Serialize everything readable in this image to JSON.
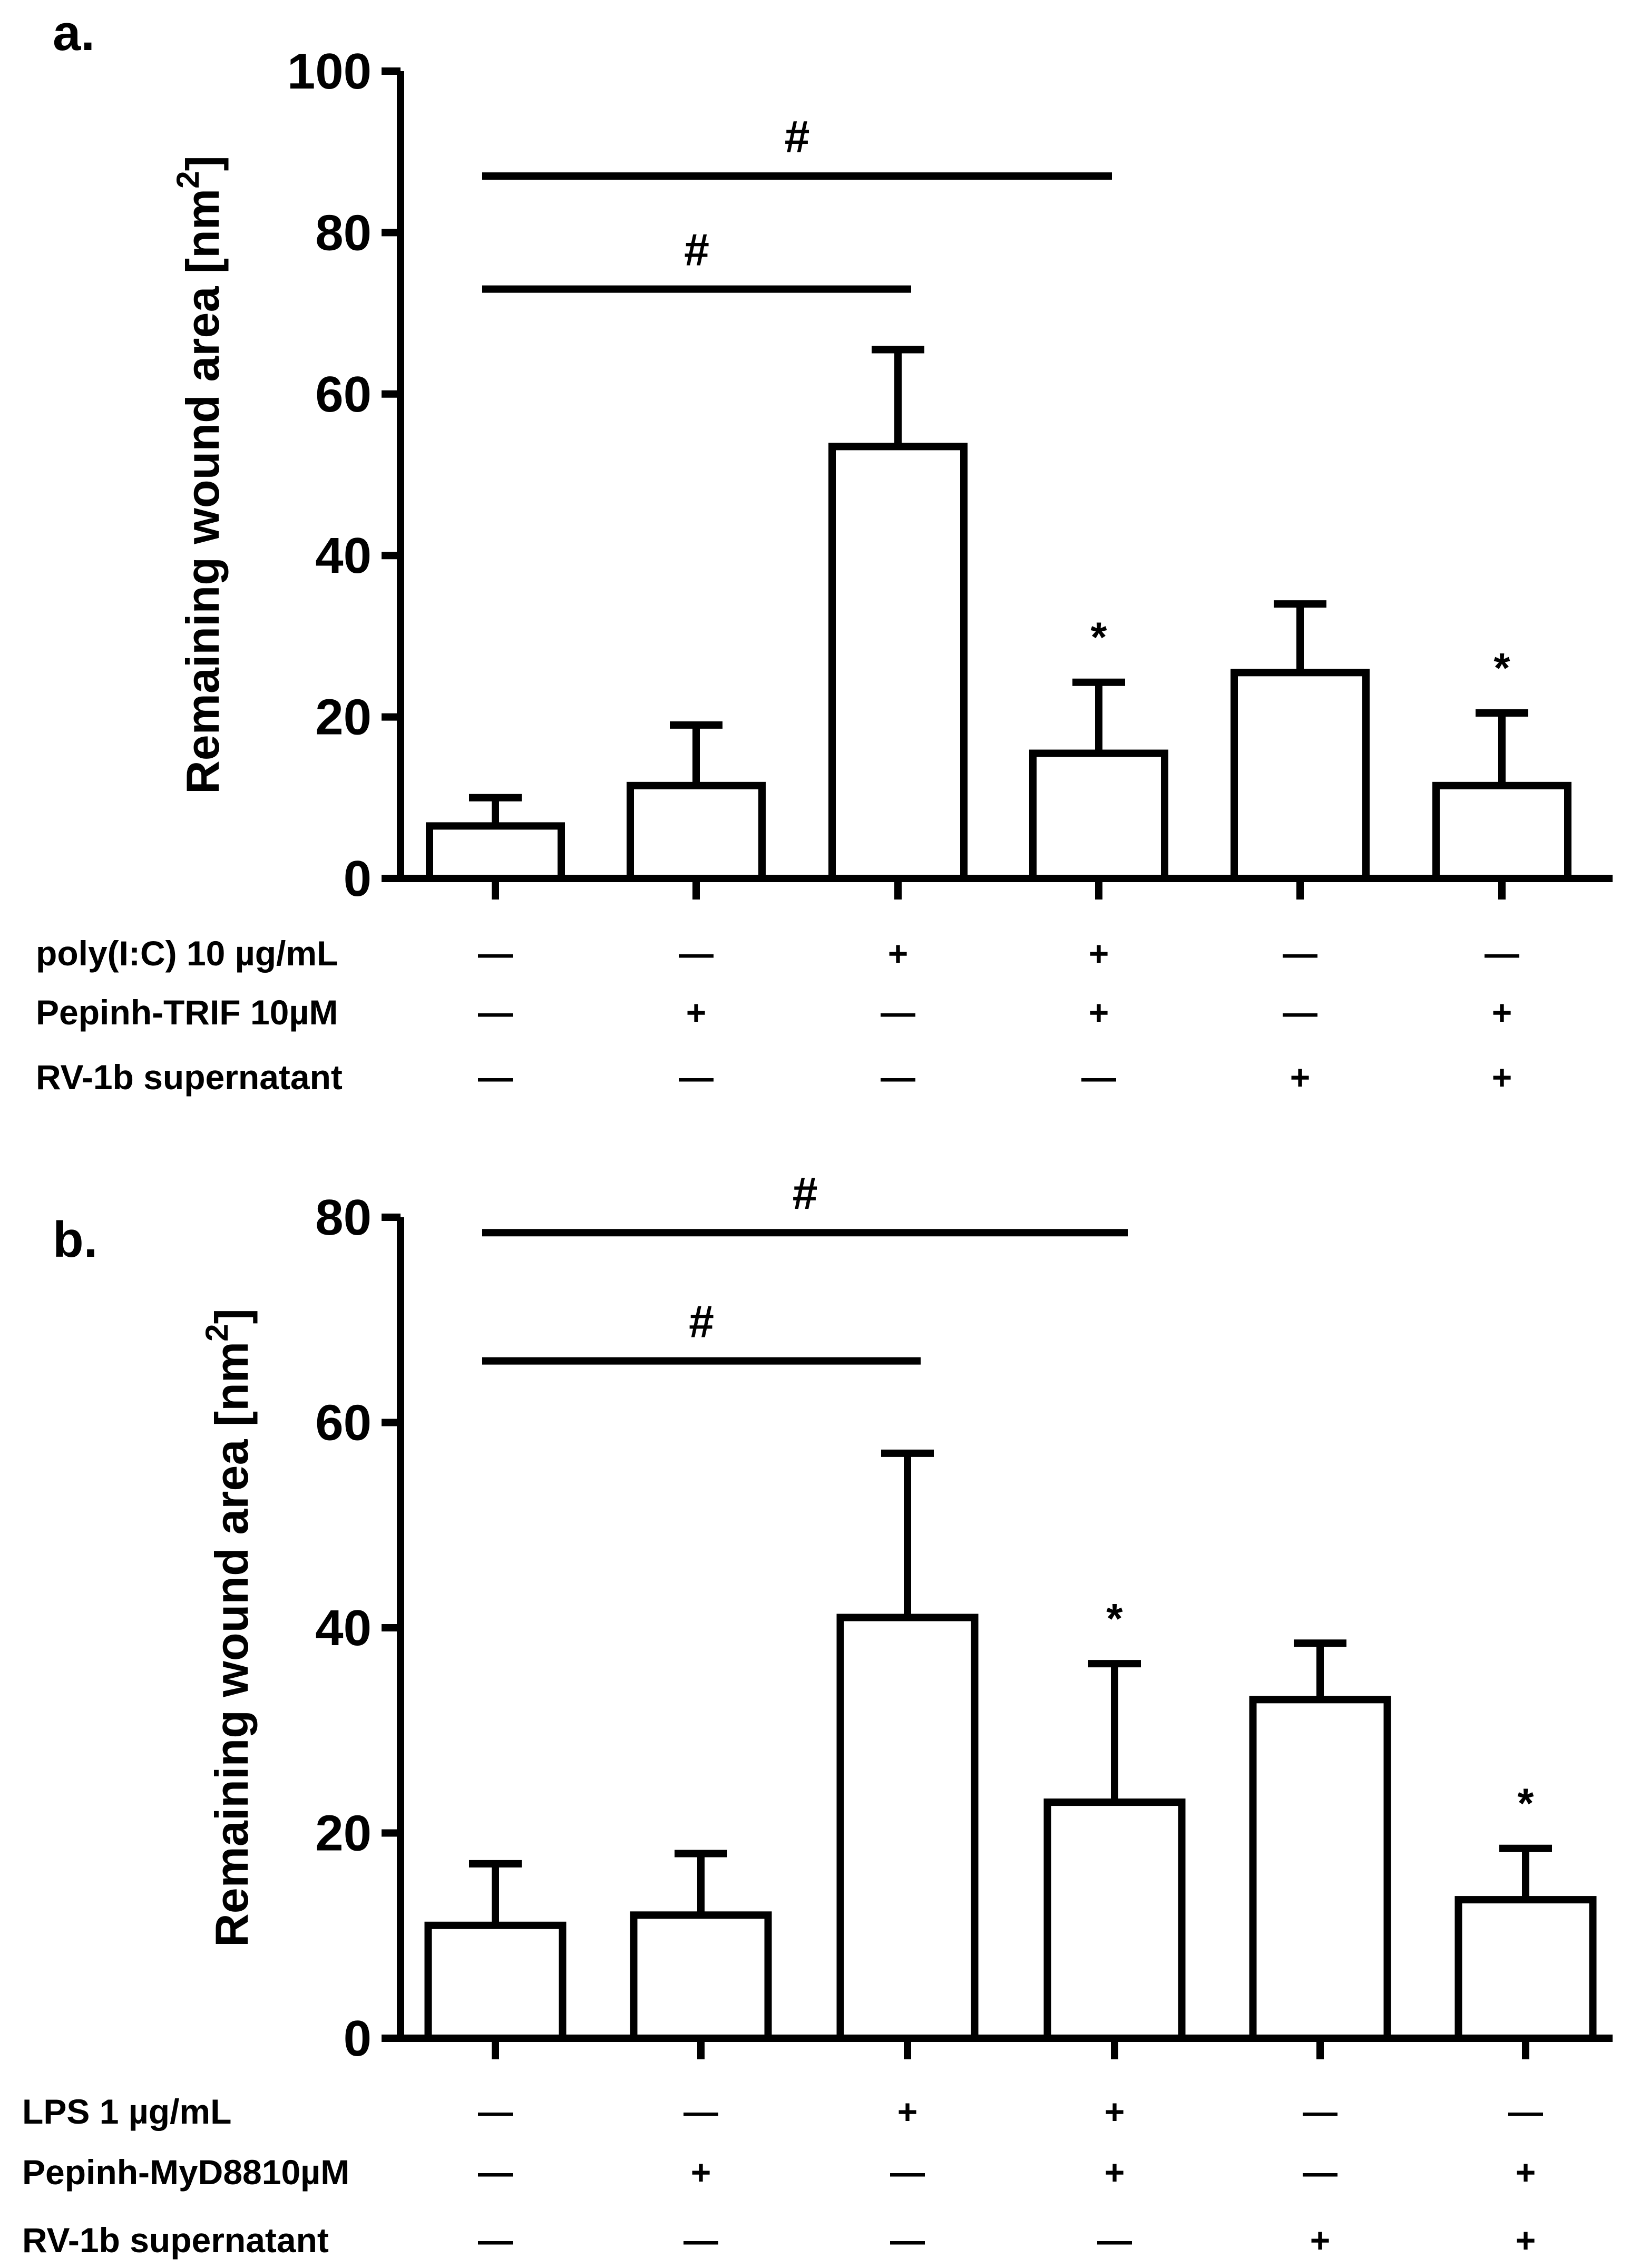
{
  "chart_data": [
    {
      "type": "bar",
      "panel_label": "a.",
      "ylabel": "Remaining wound area [nm",
      "ylabel_sup": "2",
      "ylabel_end": "]",
      "ylim": [
        0,
        100
      ],
      "yticks": [
        "0",
        "20",
        "40",
        "60",
        "80",
        "100"
      ],
      "values": [
        6.5,
        11.5,
        53.5,
        15.5,
        25.5,
        11.5
      ],
      "errors": [
        3.5,
        7.5,
        12,
        8.8,
        8.5,
        9
      ],
      "annotations": [
        "",
        "",
        "",
        "*",
        "",
        "*"
      ],
      "brackets": [
        {
          "from": 0,
          "to": 3,
          "label": "#",
          "y": 87
        },
        {
          "from": 0,
          "to": 2,
          "label": "#",
          "y": 73
        }
      ],
      "conditions": [
        {
          "label": "poly(I:C) 10 µg/mL",
          "marks": [
            "—",
            "—",
            "+",
            "+",
            "—",
            "—"
          ]
        },
        {
          "label": "Pepinh-TRIF 10µM",
          "marks": [
            "—",
            "+",
            "—",
            "+",
            "—",
            "+"
          ]
        },
        {
          "label": "RV-1b supernatant",
          "marks": [
            "—",
            "—",
            "—",
            "—",
            "+",
            "+"
          ]
        }
      ]
    },
    {
      "type": "bar",
      "panel_label": "b.",
      "ylabel": "Remaining wound area [nm",
      "ylabel_sup": "2",
      "ylabel_end": "]",
      "ylim": [
        0,
        80
      ],
      "yticks": [
        "0",
        "20",
        "40",
        "60",
        "80"
      ],
      "values": [
        11,
        12,
        41,
        23,
        33,
        13.5
      ],
      "errors": [
        6,
        6,
        16,
        13.5,
        5.5,
        5
      ],
      "annotations": [
        "",
        "",
        "",
        "*",
        "",
        "*"
      ],
      "brackets": [
        {
          "from": 0,
          "to": 3,
          "label": "#",
          "y": 78.5
        },
        {
          "from": 0,
          "to": 2,
          "label": "#",
          "y": 66
        }
      ],
      "conditions": [
        {
          "label": "LPS 1 µg/mL",
          "marks": [
            "—",
            "—",
            "+",
            "+",
            "—",
            "—"
          ]
        },
        {
          "label": "Pepinh-MyD8810µM",
          "marks": [
            "—",
            "+",
            "—",
            "+",
            "—",
            "+"
          ]
        },
        {
          "label": "RV-1b supernatant",
          "marks": [
            "—",
            "—",
            "—",
            "—",
            "+",
            "+"
          ]
        }
      ]
    }
  ]
}
